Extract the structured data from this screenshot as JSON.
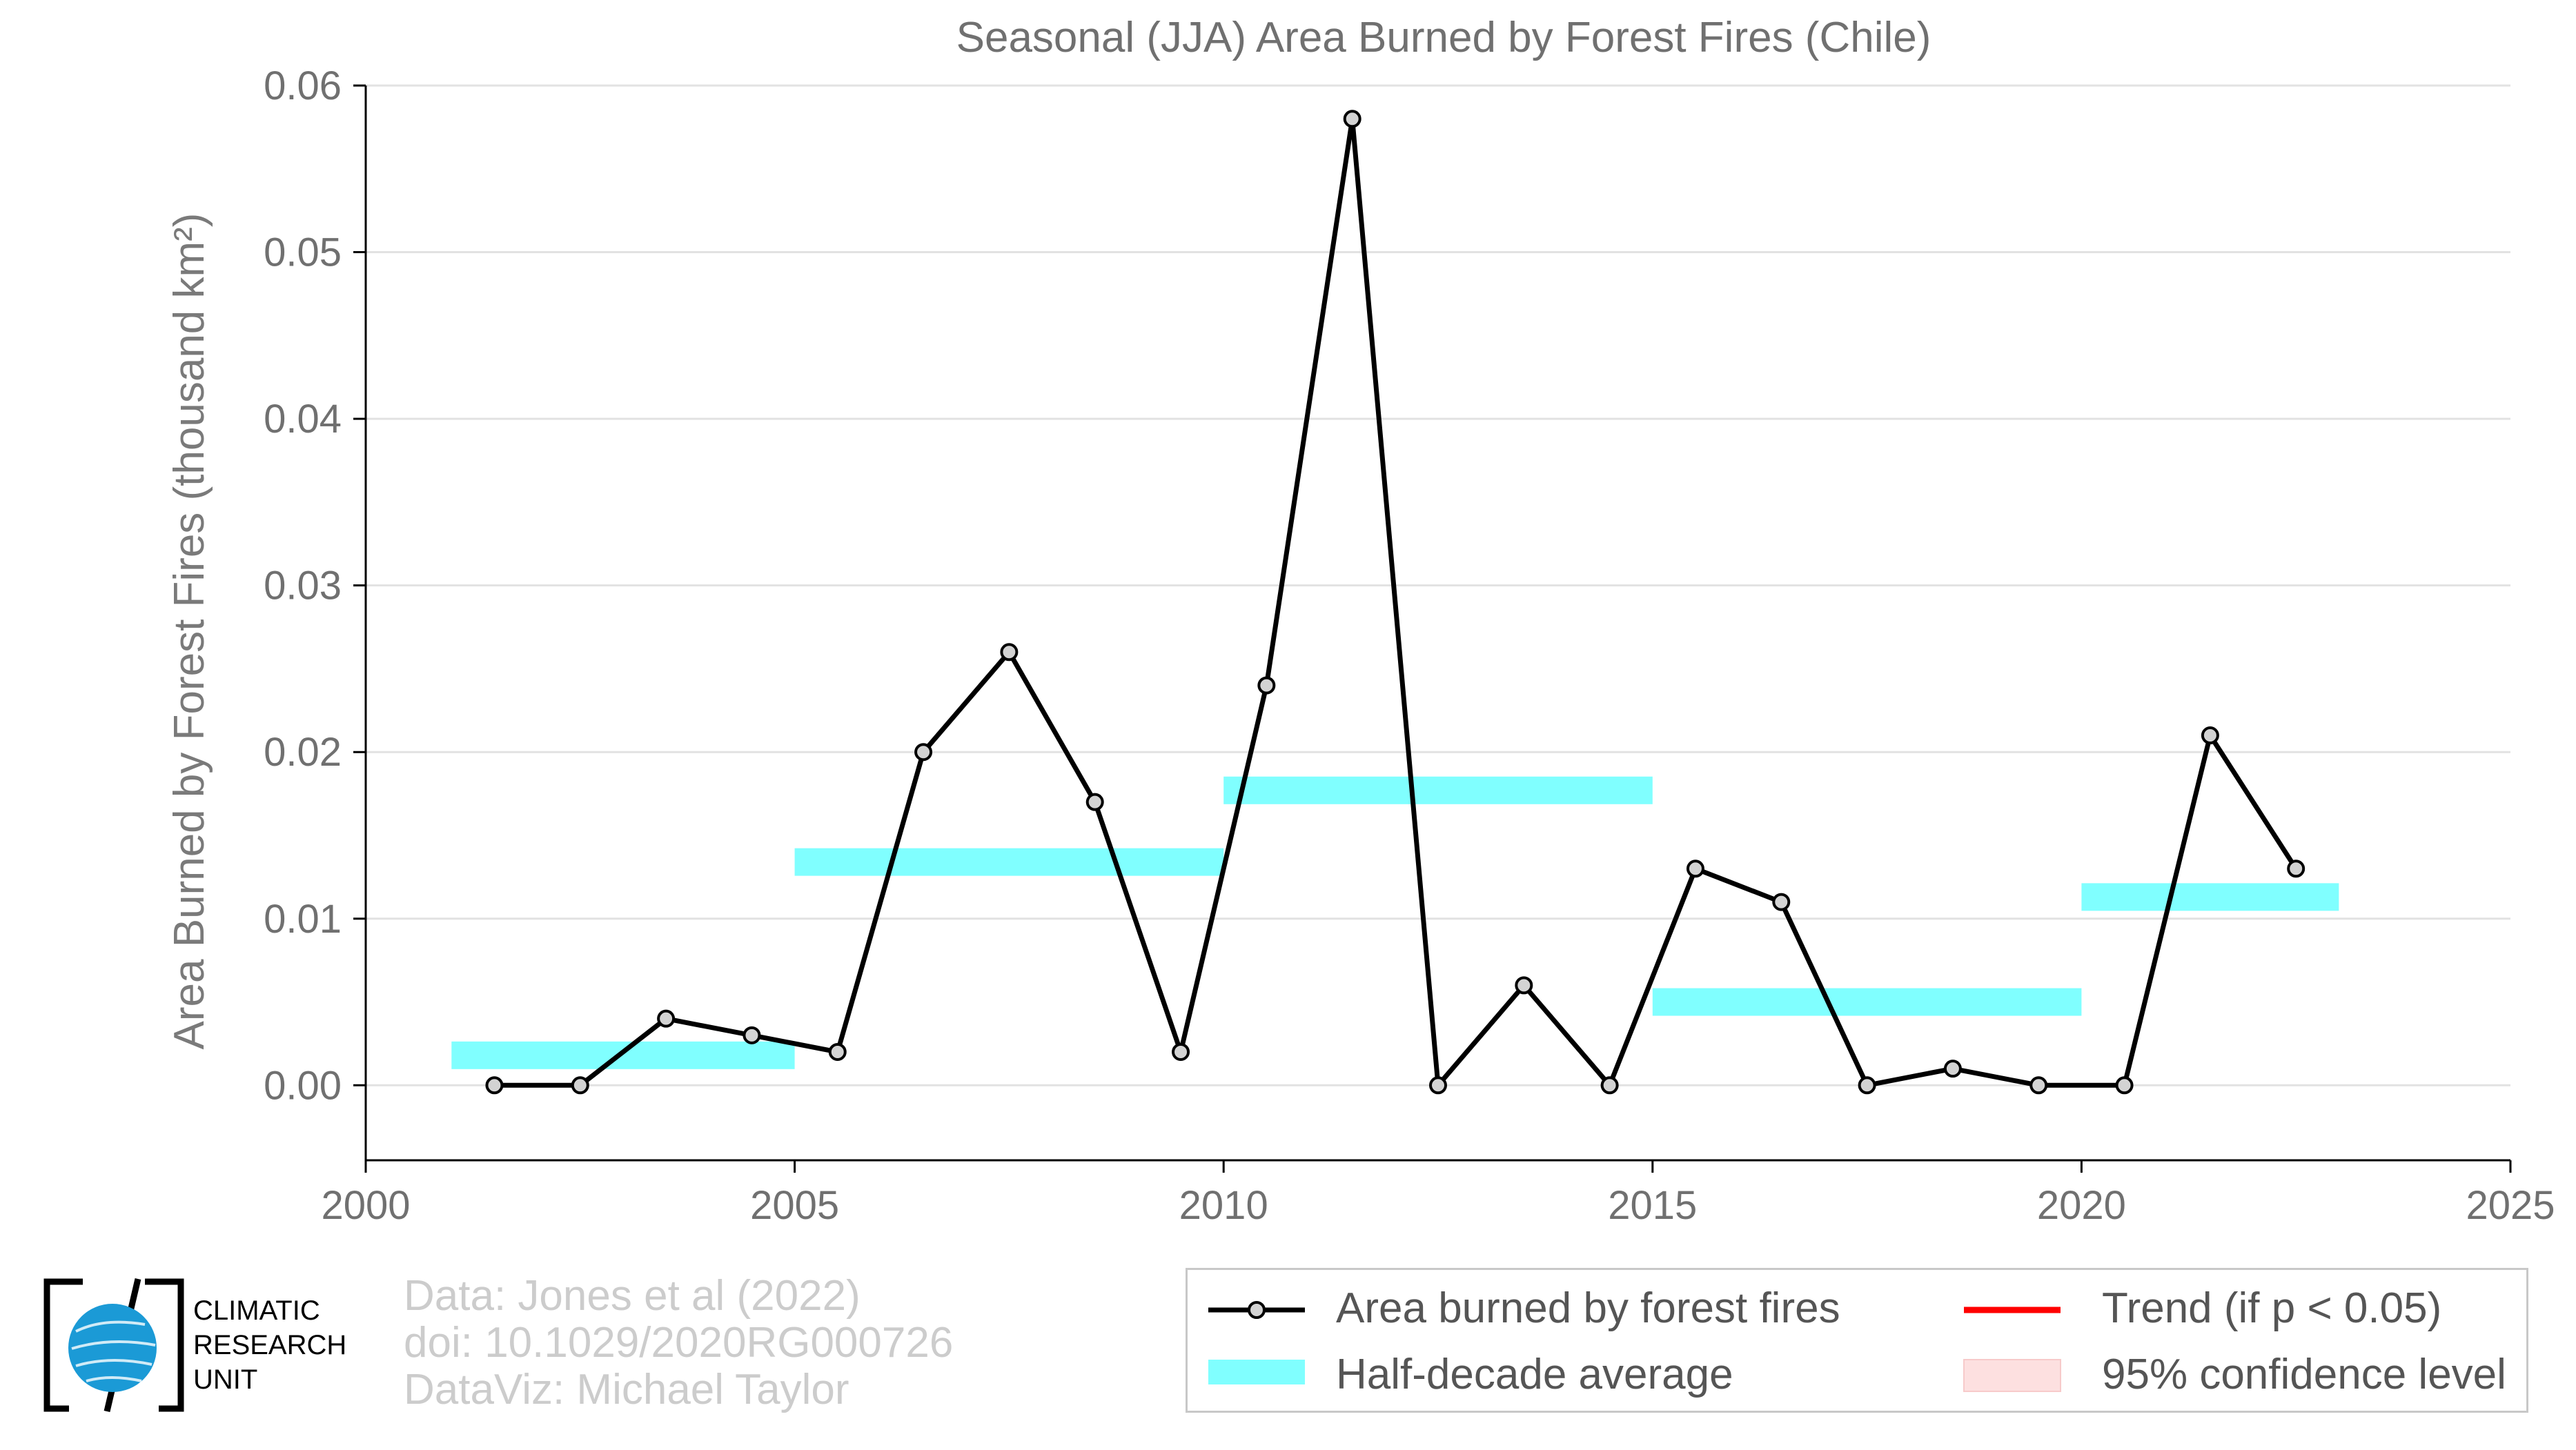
{
  "chart_data": {
    "type": "line",
    "title": "Seasonal (JJA) Area Burned by Forest Fires (Chile)",
    "ylabel": "Area Burned by Forest Fires (thousand km²)",
    "xlabel": "",
    "xlim": [
      2000,
      2025
    ],
    "ylim": [
      -0.0045,
      0.06
    ],
    "x_ticks": [
      "2000",
      "2005",
      "2010",
      "2015",
      "2020",
      "2025"
    ],
    "x_tick_values": [
      2000,
      2005,
      2010,
      2015,
      2020,
      2025
    ],
    "y_ticks": [
      "0.00",
      "0.01",
      "0.02",
      "0.03",
      "0.04",
      "0.05",
      "0.06"
    ],
    "y_tick_values": [
      0.0,
      0.01,
      0.02,
      0.03,
      0.04,
      0.05,
      0.06
    ],
    "grid": true,
    "series": [
      {
        "name": "Area burned by forest fires",
        "color": "#000000",
        "marker_fill": "#d3d3d3",
        "x": [
          2001.5,
          2002.5,
          2003.5,
          2004.5,
          2005.5,
          2006.5,
          2007.5,
          2008.5,
          2009.5,
          2010.5,
          2011.5,
          2012.5,
          2013.5,
          2014.5,
          2015.5,
          2016.5,
          2017.5,
          2018.5,
          2019.5,
          2020.5,
          2021.5,
          2022.5
        ],
        "values": [
          0.0,
          0.0,
          0.004,
          0.003,
          0.002,
          0.02,
          0.026,
          0.017,
          0.002,
          0.024,
          0.058,
          0.0,
          0.006,
          0.0,
          0.013,
          0.011,
          0.0,
          0.001,
          0.0,
          0.0,
          0.021,
          0.013
        ]
      }
    ],
    "half_decade_average": {
      "name": "Half-decade average",
      "color": "#80ffff",
      "segments": [
        {
          "x_start": 2001,
          "x_end": 2005,
          "value": 0.0018
        },
        {
          "x_start": 2005,
          "x_end": 2010,
          "value": 0.0134
        },
        {
          "x_start": 2010,
          "x_end": 2015,
          "value": 0.0177
        },
        {
          "x_start": 2015,
          "x_end": 2020,
          "value": 0.005
        },
        {
          "x_start": 2020,
          "x_end": 2023,
          "value": 0.0113
        }
      ]
    },
    "legend": {
      "placement": "bottom-right",
      "items": [
        {
          "label": "Area burned by forest fires",
          "key": "line-marker",
          "color": "#000000"
        },
        {
          "label": "Half-decade average",
          "key": "band",
          "color": "#80ffff"
        },
        {
          "label": "Trend (if p < 0.05)",
          "key": "line",
          "color": "#ff0000"
        },
        {
          "label": "95% confidence level",
          "key": "band",
          "color": "#fde0e0"
        }
      ]
    }
  },
  "credits": {
    "data": "Data: Jones et al (2022)",
    "doi": "doi: 10.1029/2020RG000726",
    "dataviz": "DataViz: Michael Taylor"
  },
  "logo": {
    "line1": "CLIMATIC",
    "line2": "RESEARCH",
    "line3": "UNIT",
    "globe_color": "#1b9ad6"
  }
}
